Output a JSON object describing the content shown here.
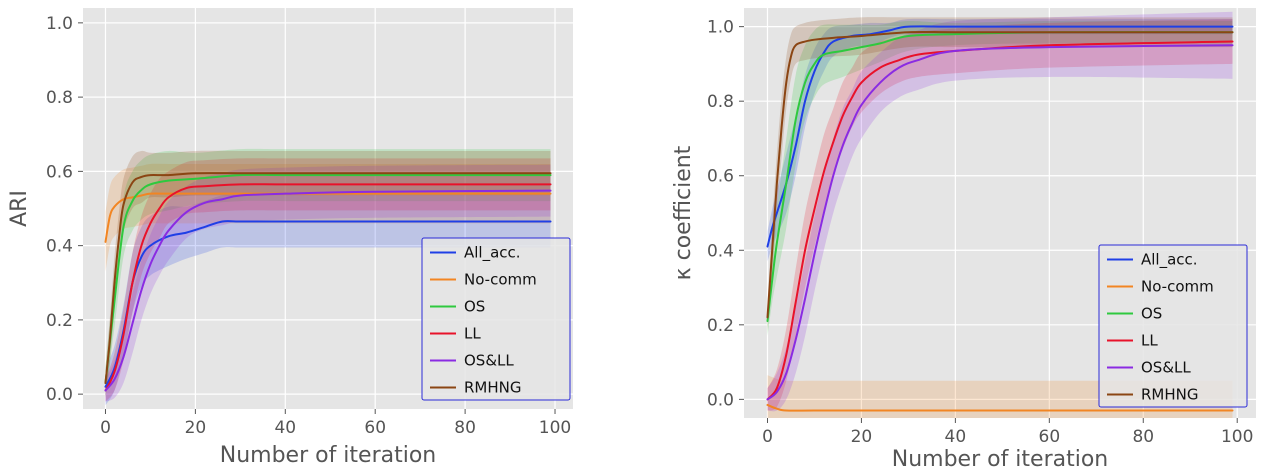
{
  "chart_data": [
    {
      "type": "line",
      "xlabel": "Number of iteration",
      "ylabel": "ARI",
      "xlim": [
        -5,
        104
      ],
      "ylim": [
        -0.04,
        1.04
      ],
      "xticks": [
        0,
        20,
        40,
        60,
        80,
        100
      ],
      "yticks": [
        0.0,
        0.2,
        0.4,
        0.6,
        0.8,
        1.0
      ],
      "ytick_labels": [
        "0.0",
        "0.2",
        "0.4",
        "0.6",
        "0.8",
        "1.0"
      ],
      "grid": true,
      "legend_position": "lower-right",
      "series": [
        {
          "name": "All_acc.",
          "color": "#1f3fe6",
          "x": [
            0,
            2,
            4,
            6,
            8,
            10,
            14,
            18,
            22,
            26,
            30,
            40,
            60,
            99
          ],
          "y": [
            0.02,
            0.07,
            0.17,
            0.3,
            0.37,
            0.4,
            0.425,
            0.435,
            0.45,
            0.465,
            0.465,
            0.465,
            0.465,
            0.465
          ],
          "band": [
            0.05,
            0.06,
            0.07,
            0.08,
            0.08,
            0.08,
            0.08,
            0.07,
            0.07,
            0.07,
            0.07,
            0.07,
            0.07,
            0.07
          ]
        },
        {
          "name": "No-comm",
          "color": "#f28522",
          "x": [
            0,
            1,
            2,
            4,
            6,
            8,
            10,
            14,
            20,
            30,
            60,
            99
          ],
          "y": [
            0.41,
            0.48,
            0.505,
            0.525,
            0.53,
            0.535,
            0.54,
            0.54,
            0.54,
            0.54,
            0.54,
            0.54
          ],
          "band": [
            0.08,
            0.08,
            0.08,
            0.08,
            0.08,
            0.08,
            0.08,
            0.08,
            0.08,
            0.08,
            0.08,
            0.08
          ]
        },
        {
          "name": "OS",
          "color": "#2ec93e",
          "x": [
            0,
            2,
            4,
            6,
            8,
            10,
            14,
            20,
            30,
            40,
            60,
            99
          ],
          "y": [
            0.03,
            0.25,
            0.45,
            0.52,
            0.55,
            0.565,
            0.575,
            0.58,
            0.59,
            0.59,
            0.59,
            0.59
          ],
          "band": [
            0.04,
            0.07,
            0.08,
            0.08,
            0.08,
            0.08,
            0.08,
            0.07,
            0.07,
            0.07,
            0.07,
            0.07
          ]
        },
        {
          "name": "LL",
          "color": "#e8122a",
          "x": [
            0,
            2,
            4,
            6,
            8,
            10,
            12,
            14,
            18,
            22,
            30,
            40,
            60,
            99
          ],
          "y": [
            0.01,
            0.06,
            0.16,
            0.3,
            0.4,
            0.46,
            0.5,
            0.53,
            0.555,
            0.56,
            0.565,
            0.565,
            0.565,
            0.565
          ],
          "band": [
            0.03,
            0.05,
            0.07,
            0.08,
            0.08,
            0.08,
            0.08,
            0.07,
            0.07,
            0.07,
            0.07,
            0.07,
            0.07,
            0.07
          ]
        },
        {
          "name": "OS&LL",
          "color": "#8a2be2",
          "x": [
            0,
            2,
            4,
            6,
            8,
            10,
            12,
            14,
            18,
            22,
            26,
            30,
            40,
            60,
            99
          ],
          "y": [
            0.01,
            0.04,
            0.1,
            0.19,
            0.28,
            0.35,
            0.4,
            0.44,
            0.49,
            0.515,
            0.525,
            0.535,
            0.54,
            0.545,
            0.548
          ],
          "band": [
            0.03,
            0.05,
            0.07,
            0.08,
            0.08,
            0.08,
            0.08,
            0.08,
            0.07,
            0.07,
            0.07,
            0.07,
            0.07,
            0.07,
            0.07
          ]
        },
        {
          "name": "RMHNG",
          "color": "#8b4513",
          "x": [
            0,
            1,
            2,
            3,
            4,
            6,
            8,
            10,
            14,
            20,
            30,
            40,
            60,
            99
          ],
          "y": [
            0.03,
            0.15,
            0.3,
            0.42,
            0.51,
            0.57,
            0.585,
            0.59,
            0.59,
            0.595,
            0.595,
            0.595,
            0.595,
            0.595
          ],
          "band": [
            0.04,
            0.06,
            0.07,
            0.07,
            0.07,
            0.07,
            0.07,
            0.06,
            0.06,
            0.06,
            0.06,
            0.06,
            0.06,
            0.06
          ]
        }
      ]
    },
    {
      "type": "line",
      "xlabel": "Number of iteration",
      "ylabel": "κ coefficient",
      "xlim": [
        -5,
        104
      ],
      "ylim": [
        -0.05,
        1.05
      ],
      "xticks": [
        0,
        20,
        40,
        60,
        80,
        100
      ],
      "yticks": [
        0.0,
        0.2,
        0.4,
        0.6,
        0.8,
        1.0
      ],
      "ytick_labels": [
        "0.0",
        "0.2",
        "0.4",
        "0.6",
        "0.8",
        "1.0"
      ],
      "grid": true,
      "legend_position": "lower-right",
      "series": [
        {
          "name": "All_acc.",
          "color": "#1f3fe6",
          "x": [
            0,
            1,
            2,
            4,
            6,
            8,
            10,
            12,
            14,
            18,
            22,
            26,
            30,
            40,
            60,
            99
          ],
          "y": [
            0.41,
            0.46,
            0.5,
            0.58,
            0.68,
            0.8,
            0.88,
            0.93,
            0.96,
            0.975,
            0.98,
            0.99,
            1.0,
            1.0,
            1.0,
            1.0
          ],
          "band": [
            0.04,
            0.05,
            0.06,
            0.08,
            0.08,
            0.07,
            0.06,
            0.05,
            0.04,
            0.03,
            0.03,
            0.02,
            0.02,
            0.02,
            0.02,
            0.02
          ]
        },
        {
          "name": "No-comm",
          "color": "#f28522",
          "x": [
            0,
            2,
            4,
            10,
            20,
            40,
            60,
            99
          ],
          "y": [
            -0.015,
            -0.025,
            -0.03,
            -0.03,
            -0.03,
            -0.03,
            -0.03,
            -0.03
          ],
          "band": [
            0.08,
            0.08,
            0.08,
            0.08,
            0.08,
            0.08,
            0.08,
            0.08
          ]
        },
        {
          "name": "OS",
          "color": "#2ec93e",
          "x": [
            0,
            1,
            2,
            4,
            6,
            8,
            10,
            12,
            16,
            20,
            24,
            30,
            40,
            60,
            99
          ],
          "y": [
            0.21,
            0.32,
            0.42,
            0.58,
            0.75,
            0.85,
            0.9,
            0.925,
            0.935,
            0.945,
            0.955,
            0.975,
            0.98,
            0.985,
            0.985
          ],
          "band": [
            0.04,
            0.06,
            0.09,
            0.12,
            0.12,
            0.1,
            0.09,
            0.08,
            0.07,
            0.06,
            0.05,
            0.04,
            0.03,
            0.03,
            0.03
          ]
        },
        {
          "name": "LL",
          "color": "#e8122a",
          "x": [
            0,
            2,
            4,
            6,
            8,
            10,
            12,
            14,
            16,
            18,
            20,
            24,
            28,
            32,
            40,
            60,
            99
          ],
          "y": [
            0.0,
            0.03,
            0.12,
            0.26,
            0.4,
            0.51,
            0.61,
            0.69,
            0.76,
            0.81,
            0.85,
            0.89,
            0.91,
            0.925,
            0.935,
            0.95,
            0.96
          ],
          "band": [
            0.03,
            0.05,
            0.07,
            0.09,
            0.1,
            0.1,
            0.1,
            0.09,
            0.09,
            0.08,
            0.08,
            0.07,
            0.06,
            0.06,
            0.06,
            0.06,
            0.06
          ]
        },
        {
          "name": "OS&LL",
          "color": "#8a2be2",
          "x": [
            0,
            2,
            4,
            6,
            8,
            10,
            12,
            14,
            16,
            18,
            20,
            24,
            28,
            32,
            40,
            60,
            99
          ],
          "y": [
            0.0,
            0.02,
            0.07,
            0.16,
            0.27,
            0.39,
            0.5,
            0.6,
            0.68,
            0.74,
            0.79,
            0.85,
            0.89,
            0.91,
            0.935,
            0.945,
            0.95
          ],
          "band": [
            0.03,
            0.05,
            0.07,
            0.09,
            0.1,
            0.1,
            0.1,
            0.1,
            0.1,
            0.09,
            0.09,
            0.08,
            0.08,
            0.08,
            0.08,
            0.08,
            0.09
          ]
        },
        {
          "name": "RMHNG",
          "color": "#8b4513",
          "x": [
            0,
            1,
            2,
            3,
            4,
            5,
            6,
            8,
            10,
            14,
            20,
            30,
            40,
            60,
            99
          ],
          "y": [
            0.22,
            0.4,
            0.58,
            0.73,
            0.85,
            0.92,
            0.95,
            0.96,
            0.965,
            0.97,
            0.975,
            0.985,
            0.985,
            0.985,
            0.985
          ],
          "band": [
            0.04,
            0.07,
            0.08,
            0.08,
            0.07,
            0.06,
            0.05,
            0.05,
            0.05,
            0.05,
            0.05,
            0.04,
            0.04,
            0.04,
            0.04
          ]
        }
      ]
    }
  ]
}
